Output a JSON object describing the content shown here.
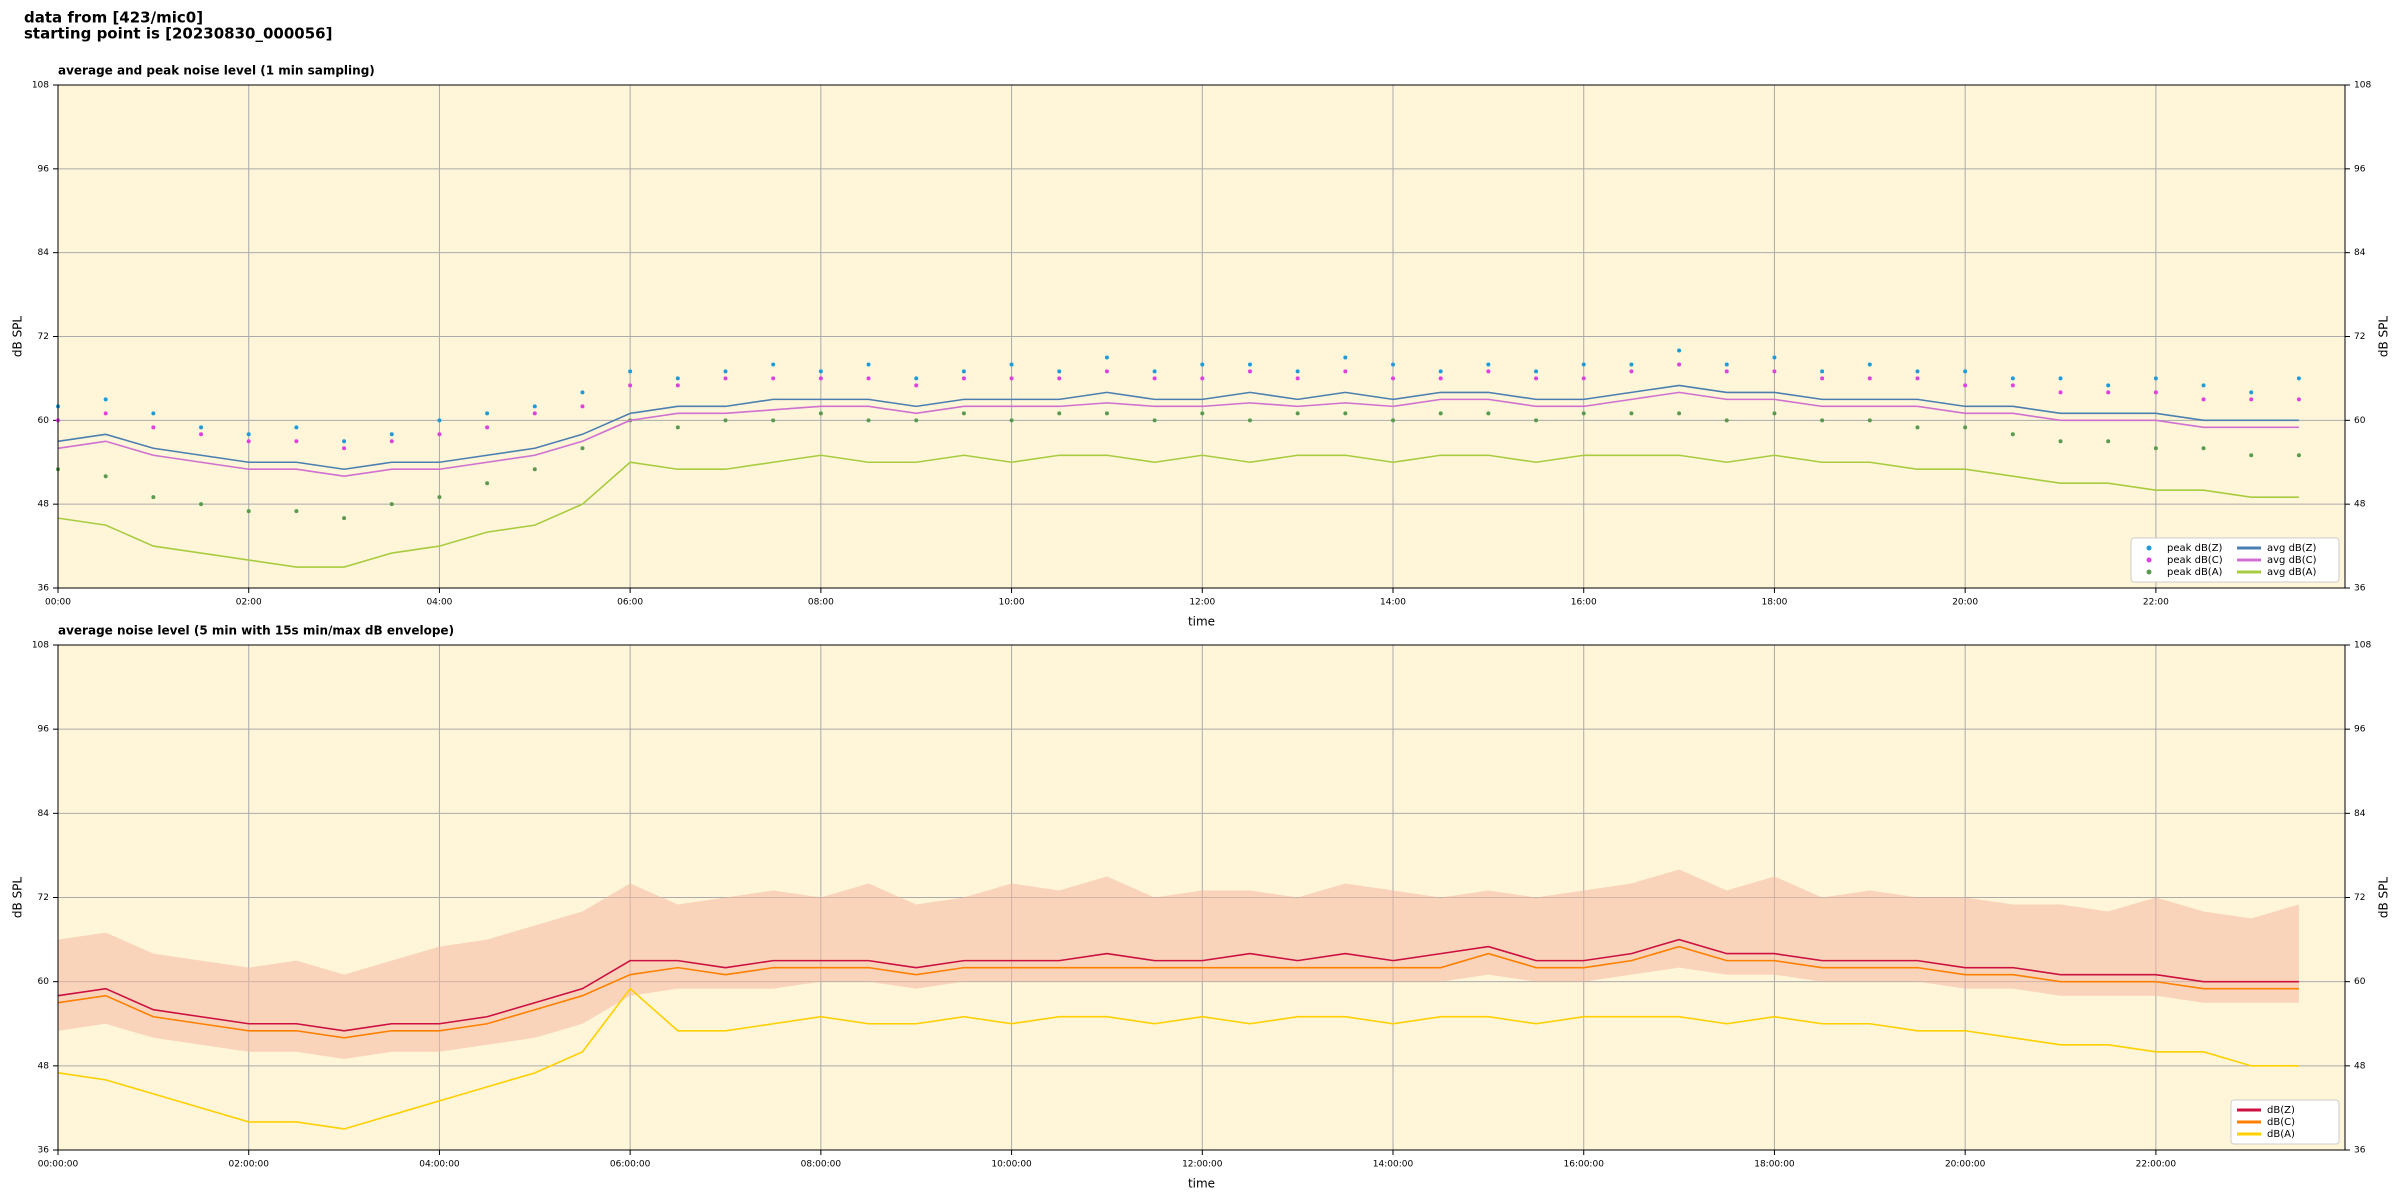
{
  "header": {
    "line1": "data from [423/mic0]",
    "line2": "starting point is [20230830_000056]"
  },
  "chart_data": [
    {
      "type": "line",
      "title": "average and peak noise level (1 min sampling)",
      "xlabel": "time",
      "ylabel": "dB SPL",
      "xlim": [
        "00:00",
        "23:59"
      ],
      "xticks": [
        "00:00",
        "02:00",
        "04:00",
        "06:00",
        "08:00",
        "10:00",
        "12:00",
        "14:00",
        "16:00",
        "18:00",
        "20:00",
        "22:00"
      ],
      "ylim": [
        36,
        108
      ],
      "yticks": [
        36,
        48,
        60,
        72,
        84,
        96,
        108
      ],
      "grid": true,
      "background": "#fff5d8",
      "legend": "lower right",
      "legend_columns": 2,
      "x": [
        "00:00",
        "00:30",
        "01:00",
        "01:30",
        "02:00",
        "02:30",
        "03:00",
        "03:30",
        "04:00",
        "04:30",
        "05:00",
        "05:30",
        "06:00",
        "06:30",
        "07:00",
        "07:30",
        "08:00",
        "08:30",
        "09:00",
        "09:30",
        "10:00",
        "10:30",
        "11:00",
        "11:30",
        "12:00",
        "12:30",
        "13:00",
        "13:30",
        "14:00",
        "14:30",
        "15:00",
        "15:30",
        "16:00",
        "16:30",
        "17:00",
        "17:30",
        "18:00",
        "18:30",
        "19:00",
        "19:30",
        "20:00",
        "20:30",
        "21:00",
        "21:30",
        "22:00",
        "22:30",
        "23:00",
        "23:30"
      ],
      "series": [
        {
          "name": "peak dB(Z)",
          "mode": "markers",
          "color": "#1f9bd9",
          "values": [
            62,
            63,
            61,
            59,
            58,
            59,
            57,
            58,
            60,
            61,
            62,
            64,
            67,
            66,
            67,
            68,
            67,
            68,
            66,
            67,
            68,
            67,
            69,
            67,
            68,
            68,
            67,
            69,
            68,
            67,
            68,
            67,
            68,
            68,
            70,
            68,
            69,
            67,
            68,
            67,
            67,
            66,
            66,
            65,
            66,
            65,
            64,
            66
          ]
        },
        {
          "name": "peak dB(C)",
          "mode": "markers",
          "color": "#e040e0",
          "values": [
            60,
            61,
            59,
            58,
            57,
            57,
            56,
            57,
            58,
            59,
            61,
            62,
            65,
            65,
            66,
            66,
            66,
            66,
            65,
            66,
            66,
            66,
            67,
            66,
            66,
            67,
            66,
            67,
            66,
            66,
            67,
            66,
            66,
            67,
            68,
            67,
            67,
            66,
            66,
            66,
            65,
            65,
            64,
            64,
            64,
            63,
            63,
            63
          ]
        },
        {
          "name": "peak dB(A)",
          "mode": "markers",
          "color": "#5a9a50",
          "values": [
            53,
            52,
            49,
            48,
            47,
            47,
            46,
            48,
            49,
            51,
            53,
            56,
            60,
            59,
            60,
            60,
            61,
            60,
            60,
            61,
            60,
            61,
            61,
            60,
            61,
            60,
            61,
            61,
            60,
            61,
            61,
            60,
            61,
            61,
            61,
            60,
            61,
            60,
            60,
            59,
            59,
            58,
            57,
            57,
            56,
            56,
            55,
            55
          ]
        },
        {
          "name": "avg dB(Z)",
          "mode": "lines",
          "color": "#4a7fb0",
          "values": [
            57,
            58,
            56,
            55,
            54,
            54,
            53,
            54,
            54,
            55,
            56,
            58,
            61,
            62,
            62,
            63,
            63,
            63,
            62,
            63,
            63,
            63,
            64,
            63,
            63,
            64,
            63,
            64,
            63,
            64,
            64,
            63,
            63,
            64,
            65,
            64,
            64,
            63,
            63,
            63,
            62,
            62,
            61,
            61,
            61,
            60,
            60,
            60
          ]
        },
        {
          "name": "avg dB(C)",
          "mode": "lines",
          "color": "#d070d0",
          "values": [
            56,
            57,
            55,
            54,
            53,
            53,
            52,
            53,
            53,
            54,
            55,
            57,
            60,
            61,
            61,
            61.5,
            62,
            62,
            61,
            62,
            62,
            62,
            62.5,
            62,
            62,
            62.5,
            62,
            62.5,
            62,
            63,
            63,
            62,
            62,
            63,
            64,
            63,
            63,
            62,
            62,
            62,
            61,
            61,
            60,
            60,
            60,
            59,
            59,
            59
          ]
        },
        {
          "name": "avg dB(A)",
          "mode": "lines",
          "color": "#a8cc40",
          "values": [
            46,
            45,
            42,
            41,
            40,
            39,
            39,
            41,
            42,
            44,
            45,
            48,
            54,
            53,
            53,
            54,
            55,
            54,
            54,
            55,
            54,
            55,
            55,
            54,
            55,
            54,
            55,
            55,
            54,
            55,
            55,
            54,
            55,
            55,
            55,
            54,
            55,
            54,
            54,
            53,
            53,
            52,
            51,
            51,
            50,
            50,
            49,
            49
          ]
        }
      ]
    },
    {
      "type": "line",
      "title": "average noise level (5 min with 15s min/max dB envelope)",
      "xlabel": "time",
      "ylabel": "dB SPL",
      "xlim": [
        "00:00:00",
        "23:59:00"
      ],
      "xticks": [
        "00:00:00",
        "02:00:00",
        "04:00:00",
        "06:00:00",
        "08:00:00",
        "10:00:00",
        "12:00:00",
        "14:00:00",
        "16:00:00",
        "18:00:00",
        "20:00:00",
        "22:00:00"
      ],
      "ylim": [
        36,
        108
      ],
      "yticks": [
        36,
        48,
        60,
        72,
        84,
        96,
        108
      ],
      "grid": true,
      "background": "#fff5d8",
      "legend": "lower right",
      "legend_columns": 1,
      "x": [
        "00:00:00",
        "00:30:00",
        "01:00:00",
        "01:30:00",
        "02:00:00",
        "02:30:00",
        "03:00:00",
        "03:30:00",
        "04:00:00",
        "04:30:00",
        "05:00:00",
        "05:30:00",
        "06:00:00",
        "06:30:00",
        "07:00:00",
        "07:30:00",
        "08:00:00",
        "08:30:00",
        "09:00:00",
        "09:30:00",
        "10:00:00",
        "10:30:00",
        "11:00:00",
        "11:30:00",
        "12:00:00",
        "12:30:00",
        "13:00:00",
        "13:30:00",
        "14:00:00",
        "14:30:00",
        "15:00:00",
        "15:30:00",
        "16:00:00",
        "16:30:00",
        "17:00:00",
        "17:30:00",
        "18:00:00",
        "18:30:00",
        "19:00:00",
        "19:30:00",
        "20:00:00",
        "20:30:00",
        "21:00:00",
        "21:30:00",
        "22:00:00",
        "22:30:00",
        "23:00:00",
        "23:30:00"
      ],
      "band": {
        "color": "#f4b8a4",
        "low": [
          53,
          54,
          52,
          51,
          50,
          50,
          49,
          50,
          50,
          51,
          52,
          54,
          58,
          59,
          59,
          59,
          60,
          60,
          59,
          60,
          60,
          60,
          60,
          60,
          60,
          60,
          60,
          60,
          60,
          60,
          61,
          60,
          60,
          61,
          62,
          61,
          61,
          60,
          60,
          60,
          59,
          59,
          58,
          58,
          58,
          57,
          57,
          57
        ],
        "high": [
          66,
          67,
          64,
          63,
          62,
          63,
          61,
          63,
          65,
          66,
          68,
          70,
          74,
          71,
          72,
          73,
          72,
          74,
          71,
          72,
          74,
          73,
          75,
          72,
          73,
          73,
          72,
          74,
          73,
          72,
          73,
          72,
          73,
          74,
          76,
          73,
          75,
          72,
          73,
          72,
          72,
          71,
          71,
          70,
          72,
          70,
          69,
          71
        ]
      },
      "series": [
        {
          "name": "dB(Z)",
          "mode": "lines",
          "color": "#cc1040",
          "values": [
            58,
            59,
            56,
            55,
            54,
            54,
            53,
            54,
            54,
            55,
            57,
            59,
            63,
            63,
            62,
            63,
            63,
            63,
            62,
            63,
            63,
            63,
            64,
            63,
            63,
            64,
            63,
            64,
            63,
            64,
            65,
            63,
            63,
            64,
            66,
            64,
            64,
            63,
            63,
            63,
            62,
            62,
            61,
            61,
            61,
            60,
            60,
            60
          ]
        },
        {
          "name": "dB(C)",
          "mode": "lines",
          "color": "#ff8000",
          "values": [
            57,
            58,
            55,
            54,
            53,
            53,
            52,
            53,
            53,
            54,
            56,
            58,
            61,
            62,
            61,
            62,
            62,
            62,
            61,
            62,
            62,
            62,
            62,
            62,
            62,
            62,
            62,
            62,
            62,
            62,
            64,
            62,
            62,
            63,
            65,
            63,
            63,
            62,
            62,
            62,
            61,
            61,
            60,
            60,
            60,
            59,
            59,
            59
          ]
        },
        {
          "name": "dB(A)",
          "mode": "lines",
          "color": "#ffd000",
          "values": [
            47,
            46,
            44,
            42,
            40,
            40,
            39,
            41,
            43,
            45,
            47,
            50,
            59,
            53,
            53,
            54,
            55,
            54,
            54,
            55,
            54,
            55,
            55,
            54,
            55,
            54,
            55,
            55,
            54,
            55,
            55,
            54,
            55,
            55,
            55,
            54,
            55,
            54,
            54,
            53,
            53,
            52,
            51,
            51,
            50,
            50,
            48,
            48
          ]
        }
      ]
    }
  ]
}
